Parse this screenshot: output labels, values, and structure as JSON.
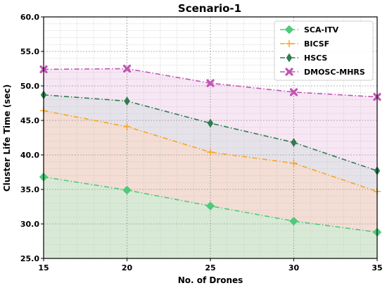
{
  "chart_data": {
    "type": "line",
    "title": "Scenario-1",
    "xlabel": "No. of Drones",
    "ylabel": "Cluster Life Time (sec)",
    "x": [
      15,
      20,
      25,
      30,
      35
    ],
    "xlim": [
      15,
      35
    ],
    "ylim": [
      25,
      60
    ],
    "xticks": [
      "15",
      "20",
      "25",
      "30",
      "35"
    ],
    "yticks": [
      "25.0",
      "30.0",
      "35.0",
      "40.0",
      "45.0",
      "50.0",
      "55.0",
      "60.0"
    ],
    "grid": true,
    "legend_position": "top-right",
    "series": [
      {
        "name": "SCA-ITV",
        "values": [
          36.8,
          34.9,
          32.6,
          30.4,
          28.8
        ],
        "color": "#4fc97a",
        "marker": "diamond",
        "linestyle": "dashdot",
        "fill": "#d8ead6"
      },
      {
        "name": "BICSF",
        "values": [
          46.4,
          44.1,
          40.4,
          38.8,
          34.7
        ],
        "color": "#f5a623",
        "marker": "plus",
        "linestyle": "dashdot",
        "fill": "#f3ddd4"
      },
      {
        "name": "HSCS",
        "values": [
          48.7,
          47.8,
          44.6,
          41.8,
          37.7
        ],
        "color": "#2e7d4f",
        "marker": "thin-diamond",
        "linestyle": "dashdot",
        "fill": "#e6e2ea"
      },
      {
        "name": "DMOSC-MHRS",
        "values": [
          52.4,
          52.5,
          50.4,
          49.1,
          48.4
        ],
        "color": "#c155b3",
        "marker": "x",
        "linestyle": "dashdot",
        "fill": "#f7e6f4"
      }
    ]
  }
}
